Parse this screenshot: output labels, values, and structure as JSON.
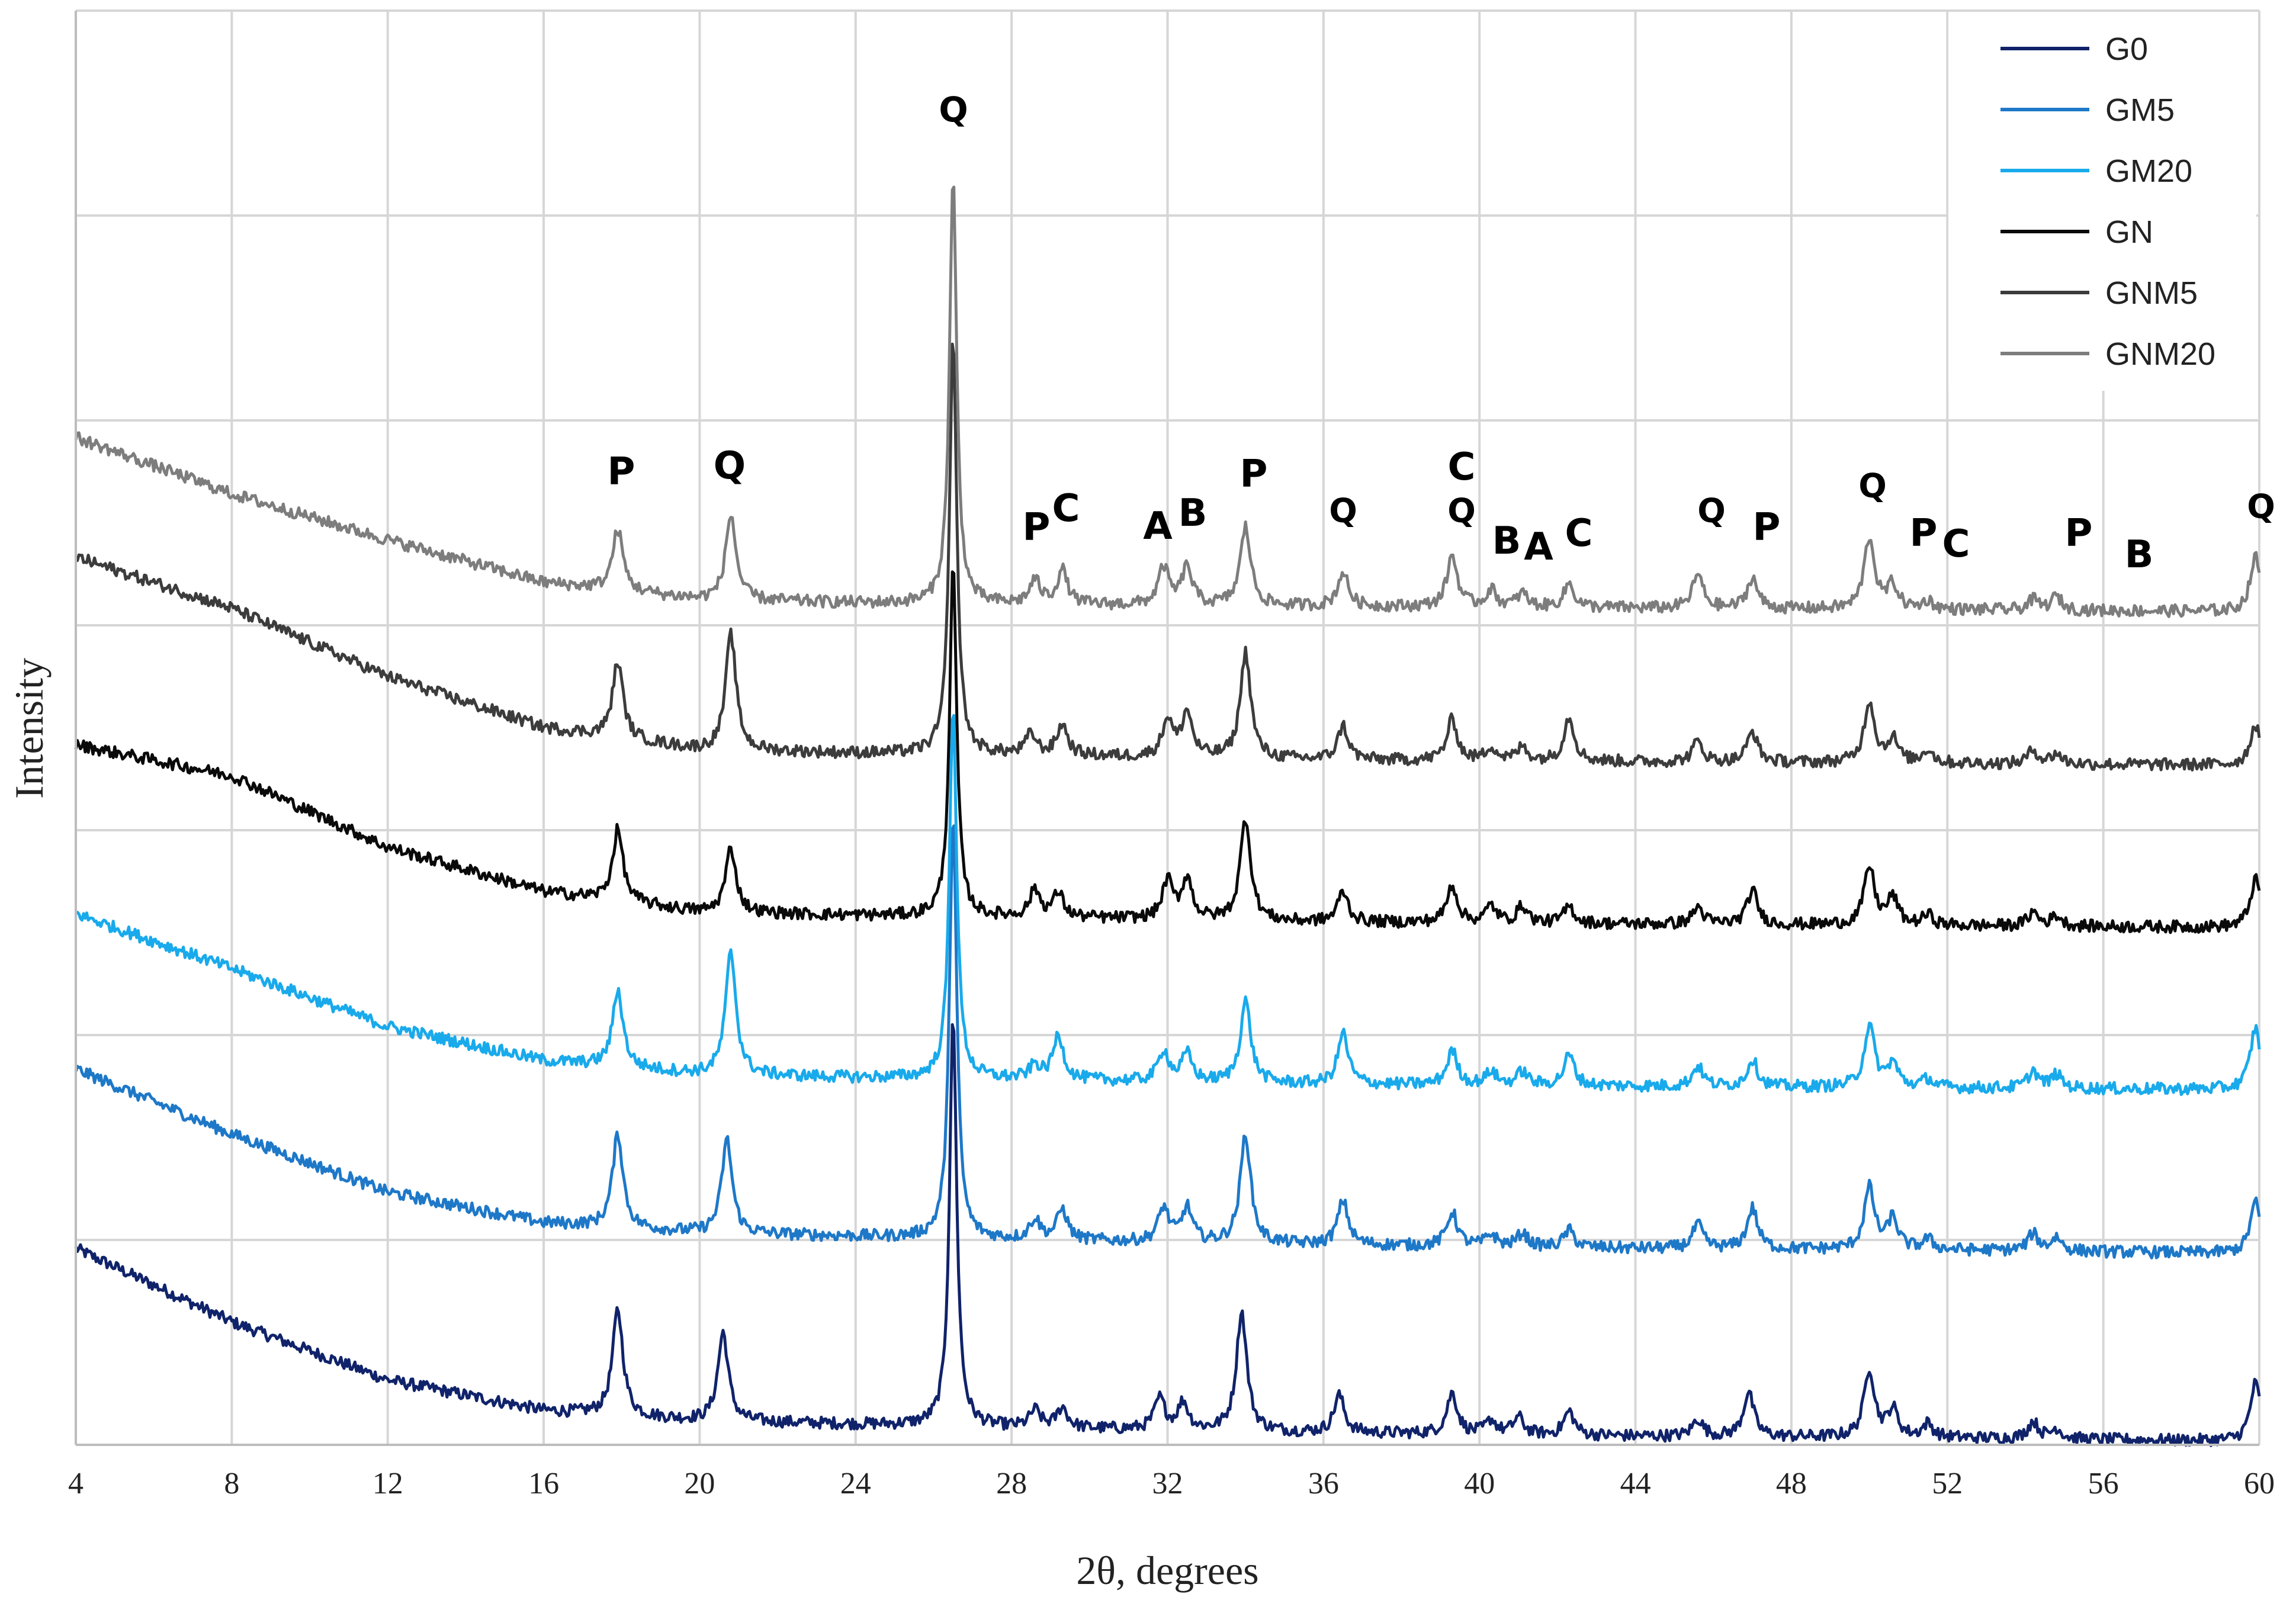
{
  "chart_data": {
    "type": "line",
    "title": "",
    "xlabel": "2θ, degrees",
    "ylabel": "Intensity",
    "xlim": [
      4,
      60
    ],
    "x_ticks": [
      4,
      8,
      12,
      16,
      20,
      24,
      28,
      32,
      36,
      40,
      44,
      48,
      52,
      56,
      60
    ],
    "grid": true,
    "y_units": "arbitrary (offset stacked patterns)",
    "legend_position": "top-right",
    "series": [
      {
        "name": "G0",
        "color": "#10236a",
        "offset": 0,
        "baseline": [
          [
            4,
            1.15
          ],
          [
            8,
            0.72
          ],
          [
            12,
            0.38
          ],
          [
            16,
            0.2
          ],
          [
            20,
            0.14
          ],
          [
            24,
            0.12
          ],
          [
            28,
            0.1
          ],
          [
            36,
            0.07
          ],
          [
            44,
            0.05
          ],
          [
            52,
            0.04
          ],
          [
            60,
            0.02
          ]
        ],
        "peaks": [
          [
            17.9,
            0.62
          ],
          [
            20.6,
            0.52
          ],
          [
            26.5,
            2.4
          ],
          [
            28.6,
            0.1
          ],
          [
            29.3,
            0.12
          ],
          [
            31.8,
            0.18
          ],
          [
            32.4,
            0.16
          ],
          [
            33.9,
            0.7
          ],
          [
            36.4,
            0.22
          ],
          [
            39.3,
            0.24
          ],
          [
            40.3,
            0.08
          ],
          [
            41.0,
            0.1
          ],
          [
            42.3,
            0.14
          ],
          [
            45.6,
            0.1
          ],
          [
            46.9,
            0.26
          ],
          [
            50.0,
            0.4
          ],
          [
            50.6,
            0.16
          ],
          [
            51.5,
            0.08
          ],
          [
            54.2,
            0.1
          ],
          [
            54.8,
            0.06
          ],
          [
            59.9,
            0.34
          ]
        ]
      },
      {
        "name": "GM5",
        "color": "#1e78c8",
        "offset": 1.1,
        "baseline": [
          [
            4,
            1.1
          ],
          [
            8,
            0.72
          ],
          [
            12,
            0.38
          ],
          [
            16,
            0.2
          ],
          [
            20,
            0.14
          ],
          [
            24,
            0.12
          ],
          [
            28,
            0.1
          ],
          [
            36,
            0.07
          ],
          [
            44,
            0.05
          ],
          [
            52,
            0.04
          ],
          [
            60,
            0.02
          ]
        ],
        "peaks": [
          [
            17.9,
            0.55
          ],
          [
            20.7,
            0.55
          ],
          [
            26.5,
            2.5
          ],
          [
            28.6,
            0.12
          ],
          [
            29.3,
            0.18
          ],
          [
            31.9,
            0.2
          ],
          [
            32.5,
            0.2
          ],
          [
            34.0,
            0.64
          ],
          [
            36.5,
            0.26
          ],
          [
            39.3,
            0.2
          ],
          [
            40.3,
            0.07
          ],
          [
            41.1,
            0.08
          ],
          [
            42.3,
            0.1
          ],
          [
            45.6,
            0.14
          ],
          [
            47.0,
            0.24
          ],
          [
            50.0,
            0.36
          ],
          [
            50.6,
            0.18
          ],
          [
            51.5,
            0.06
          ],
          [
            54.2,
            0.1
          ],
          [
            54.8,
            0.08
          ],
          [
            59.9,
            0.3
          ]
        ]
      },
      {
        "name": "GM20",
        "color": "#19aaeb",
        "offset": 2.05,
        "baseline": [
          [
            4,
            1.06
          ],
          [
            8,
            0.74
          ],
          [
            12,
            0.4
          ],
          [
            16,
            0.2
          ],
          [
            20,
            0.12
          ],
          [
            24,
            0.1
          ],
          [
            28,
            0.09
          ],
          [
            36,
            0.06
          ],
          [
            44,
            0.05
          ],
          [
            52,
            0.04
          ],
          [
            60,
            0.03
          ]
        ],
        "peaks": [
          [
            17.9,
            0.45
          ],
          [
            20.8,
            0.72
          ],
          [
            26.5,
            2.2
          ],
          [
            28.6,
            0.08
          ],
          [
            29.2,
            0.26
          ],
          [
            31.9,
            0.18
          ],
          [
            32.5,
            0.16
          ],
          [
            34.0,
            0.48
          ],
          [
            36.5,
            0.3
          ],
          [
            39.3,
            0.2
          ],
          [
            40.3,
            0.08
          ],
          [
            41.1,
            0.08
          ],
          [
            42.3,
            0.18
          ],
          [
            45.6,
            0.12
          ],
          [
            47.0,
            0.16
          ],
          [
            50.0,
            0.36
          ],
          [
            50.6,
            0.14
          ],
          [
            51.5,
            0.05
          ],
          [
            54.2,
            0.1
          ],
          [
            54.8,
            0.08
          ],
          [
            59.9,
            0.36
          ]
        ]
      },
      {
        "name": "GN",
        "color": "#0a0a0a",
        "offset": 3.0,
        "baseline": [
          [
            4,
            1.1
          ],
          [
            8,
            0.92
          ],
          [
            12,
            0.5
          ],
          [
            16,
            0.24
          ],
          [
            20,
            0.12
          ],
          [
            24,
            0.1
          ],
          [
            28,
            0.09
          ],
          [
            36,
            0.06
          ],
          [
            44,
            0.05
          ],
          [
            52,
            0.04
          ],
          [
            60,
            0.03
          ]
        ],
        "peaks": [
          [
            17.9,
            0.42
          ],
          [
            20.8,
            0.38
          ],
          [
            26.5,
            2.05
          ],
          [
            28.6,
            0.16
          ],
          [
            29.2,
            0.14
          ],
          [
            32.0,
            0.22
          ],
          [
            32.5,
            0.24
          ],
          [
            34.0,
            0.6
          ],
          [
            36.5,
            0.18
          ],
          [
            39.3,
            0.22
          ],
          [
            40.3,
            0.1
          ],
          [
            41.1,
            0.1
          ],
          [
            42.3,
            0.1
          ],
          [
            45.6,
            0.1
          ],
          [
            47.0,
            0.2
          ],
          [
            50.0,
            0.34
          ],
          [
            50.6,
            0.16
          ],
          [
            51.5,
            0.06
          ],
          [
            54.2,
            0.08
          ],
          [
            54.8,
            0.06
          ],
          [
            59.9,
            0.28
          ]
        ]
      },
      {
        "name": "GNM5",
        "color": "#3c3c3c",
        "offset": 3.95,
        "baseline": [
          [
            4,
            1.25
          ],
          [
            8,
            0.95
          ],
          [
            12,
            0.55
          ],
          [
            16,
            0.25
          ],
          [
            20,
            0.12
          ],
          [
            24,
            0.1
          ],
          [
            28,
            0.09
          ],
          [
            36,
            0.06
          ],
          [
            44,
            0.05
          ],
          [
            52,
            0.04
          ],
          [
            60,
            0.03
          ]
        ],
        "peaks": [
          [
            17.9,
            0.45
          ],
          [
            20.8,
            0.68
          ],
          [
            26.5,
            2.45
          ],
          [
            28.5,
            0.12
          ],
          [
            29.3,
            0.18
          ],
          [
            32.0,
            0.22
          ],
          [
            32.5,
            0.26
          ],
          [
            34.0,
            0.62
          ],
          [
            36.5,
            0.2
          ],
          [
            39.3,
            0.24
          ],
          [
            40.3,
            0.08
          ],
          [
            41.1,
            0.08
          ],
          [
            42.3,
            0.26
          ],
          [
            45.6,
            0.12
          ],
          [
            47.0,
            0.18
          ],
          [
            50.0,
            0.36
          ],
          [
            50.6,
            0.14
          ],
          [
            51.5,
            0.08
          ],
          [
            54.2,
            0.08
          ],
          [
            54.8,
            0.06
          ],
          [
            59.9,
            0.24
          ]
        ]
      },
      {
        "name": "GNM20",
        "color": "#7d7d7d",
        "offset": 4.85,
        "baseline": [
          [
            4,
            1.05
          ],
          [
            8,
            0.72
          ],
          [
            12,
            0.45
          ],
          [
            16,
            0.2
          ],
          [
            20,
            0.1
          ],
          [
            24,
            0.08
          ],
          [
            28,
            0.07
          ],
          [
            36,
            0.06
          ],
          [
            44,
            0.05
          ],
          [
            52,
            0.04
          ],
          [
            60,
            0.03
          ]
        ],
        "peaks": [
          [
            17.9,
            0.36
          ],
          [
            20.8,
            0.5
          ],
          [
            26.5,
            2.5
          ],
          [
            28.6,
            0.14
          ],
          [
            29.3,
            0.2
          ],
          [
            31.9,
            0.22
          ],
          [
            32.5,
            0.22
          ],
          [
            34.0,
            0.46
          ],
          [
            36.5,
            0.2
          ],
          [
            39.3,
            0.3
          ],
          [
            40.3,
            0.1
          ],
          [
            41.1,
            0.08
          ],
          [
            42.3,
            0.14
          ],
          [
            45.6,
            0.2
          ],
          [
            47.0,
            0.18
          ],
          [
            50.0,
            0.42
          ],
          [
            50.6,
            0.14
          ],
          [
            51.5,
            0.05
          ],
          [
            54.2,
            0.06
          ],
          [
            54.8,
            0.08
          ],
          [
            59.9,
            0.32
          ]
        ]
      }
    ],
    "annotations": [
      {
        "text": "P",
        "x": 17.9
      },
      {
        "text": "Q",
        "x": 20.8
      },
      {
        "text": "Q",
        "x": 26.5
      },
      {
        "text": "P",
        "x": 28.6
      },
      {
        "text": "C",
        "x": 29.2
      },
      {
        "text": "A",
        "x": 31.8
      },
      {
        "text": "B",
        "x": 32.5
      },
      {
        "text": "P",
        "x": 34.1
      },
      {
        "text": "Q",
        "x": 36.5
      },
      {
        "text": "C",
        "x": 39.4
      },
      {
        "text": "Q",
        "x": 39.3
      },
      {
        "text": "B",
        "x": 40.6
      },
      {
        "text": "A",
        "x": 41.3
      },
      {
        "text": "C",
        "x": 42.4
      },
      {
        "text": "Q",
        "x": 45.8
      },
      {
        "text": "P",
        "x": 47.3
      },
      {
        "text": "Q",
        "x": 49.9
      },
      {
        "text": "P",
        "x": 51.2
      },
      {
        "text": "C",
        "x": 52.1
      },
      {
        "text": "P",
        "x": 55.3
      },
      {
        "text": "B",
        "x": 57.0
      },
      {
        "text": "Q",
        "x": 60.0
      }
    ]
  }
}
